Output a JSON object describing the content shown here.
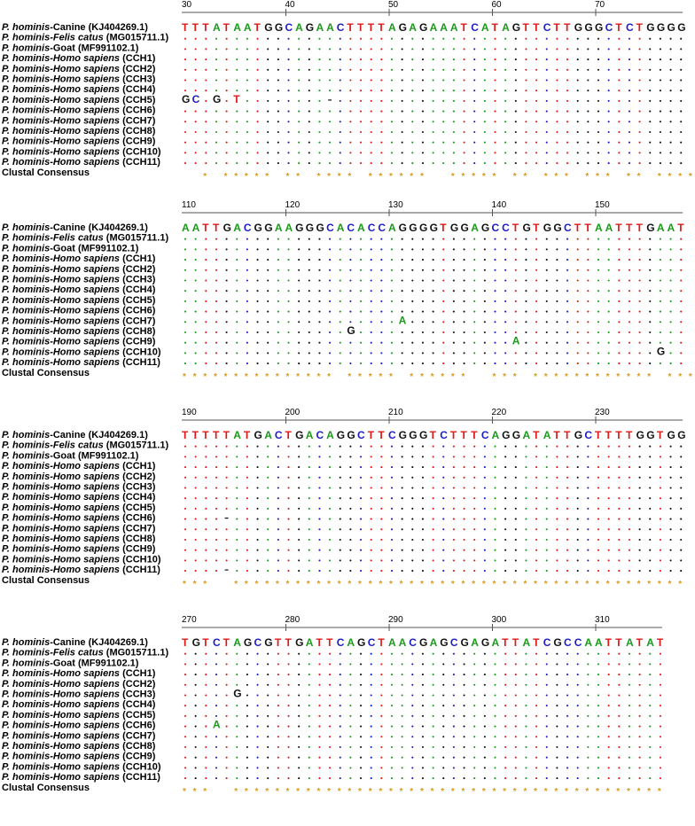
{
  "colors": {
    "A": "#1a9a1a",
    "C": "#1c1cc8",
    "G": "#111111",
    "T": "#e01818",
    "-": "#111111",
    "star": "#d99a1e"
  },
  "consensus_label": "Clustal Consensus",
  "sequences": [
    {
      "prefix": "P. hominis",
      "suffix": "-Canine (KJ404269.1)",
      "suffix_italic": false
    },
    {
      "prefix": "P. hominis-Felis catus",
      "suffix": " (MG015711.1)",
      "suffix_italic": false
    },
    {
      "prefix": "P. hominis",
      "suffix": "-Goat (MF991102.1)",
      "suffix_italic": false
    },
    {
      "prefix": "P. hominis-Homo sapiens",
      "suffix": " (CCH1)",
      "suffix_italic": false
    },
    {
      "prefix": "P. hominis-Homo sapiens",
      "suffix": " (CCH2)",
      "suffix_italic": false
    },
    {
      "prefix": "P. hominis-Homo sapiens",
      "suffix": " (CCH3)",
      "suffix_italic": false
    },
    {
      "prefix": "P. hominis-Homo sapiens",
      "suffix": " (CCH4)",
      "suffix_italic": false
    },
    {
      "prefix": "P. hominis-Homo sapiens",
      "suffix": " (CCH5)",
      "suffix_italic": false
    },
    {
      "prefix": "P. hominis-Homo sapiens",
      "suffix": " (CCH6)",
      "suffix_italic": false
    },
    {
      "prefix": "P. hominis-Homo sapiens",
      "suffix": " (CCH7)",
      "suffix_italic": false
    },
    {
      "prefix": "P. hominis-Homo sapiens",
      "suffix": " (CCH8)",
      "suffix_italic": false
    },
    {
      "prefix": "P. hominis-Homo sapiens",
      "suffix": " (CCH9)",
      "suffix_italic": false
    },
    {
      "prefix": "P. hominis-Homo sapiens",
      "suffix": " (CCH10)",
      "suffix_italic": false
    },
    {
      "prefix": "P. hominis-Homo sapiens",
      "suffix": " (CCH11)",
      "suffix_italic": false
    }
  ],
  "blocks": [
    {
      "start": 30,
      "ruler": [
        "30",
        "40",
        "50",
        "60",
        "70"
      ],
      "reference": "TTTATAATGGCAGAACTTTTAGAGAAATCATAGTTCTTGGGCTCTGGGG",
      "variants": [
        {
          "row": 7,
          "pos": 30,
          "char": "G"
        },
        {
          "row": 7,
          "pos": 31,
          "char": "C"
        },
        {
          "row": 7,
          "pos": 33,
          "char": "G"
        },
        {
          "row": 7,
          "pos": 35,
          "char": "T"
        },
        {
          "row": 7,
          "pos": 44,
          "char": "-"
        }
      ],
      "consensus": "  * ***** ** **** ******  ***** ** *** *** ** ****"
    },
    {
      "start": 110,
      "ruler": [
        "110",
        "120",
        "130",
        "140",
        "150"
      ],
      "reference": "AATTGACGGAAGGGCACACCAGGGGTGGAGCCTGTGGCTTAATTTGAAT",
      "variants": [
        {
          "row": 9,
          "pos": 131,
          "char": "A"
        },
        {
          "row": 10,
          "pos": 126,
          "char": "G"
        },
        {
          "row": 11,
          "pos": 142,
          "char": "A"
        },
        {
          "row": 12,
          "pos": 156,
          "char": "G"
        }
      ],
      "consensus": "*************** ***** ******  *** ************ ***"
    },
    {
      "start": 190,
      "ruler": [
        "190",
        "200",
        "210",
        "220",
        "230"
      ],
      "reference": "TTTTTATGACTGACAGGCTTCGGGTCTTTCAGGATATTGCTTTTGGTGG",
      "variants": [
        {
          "row": 8,
          "pos": 194,
          "char": "-"
        },
        {
          "row": 13,
          "pos": 194,
          "char": "-"
        }
      ],
      "consensus": "***  ********************************************"
    },
    {
      "start": 270,
      "ruler": [
        "270",
        "280",
        "290",
        "300",
        "310"
      ],
      "reference": "TGTCTAGCGTTGATTCAGCTAACGAGCGAGATTATCGCCAATTATAT",
      "variants": [
        {
          "row": 5,
          "pos": 275,
          "char": "G"
        },
        {
          "row": 8,
          "pos": 273,
          "char": "A"
        }
      ],
      "consensus": "***  ******************************************"
    }
  ]
}
